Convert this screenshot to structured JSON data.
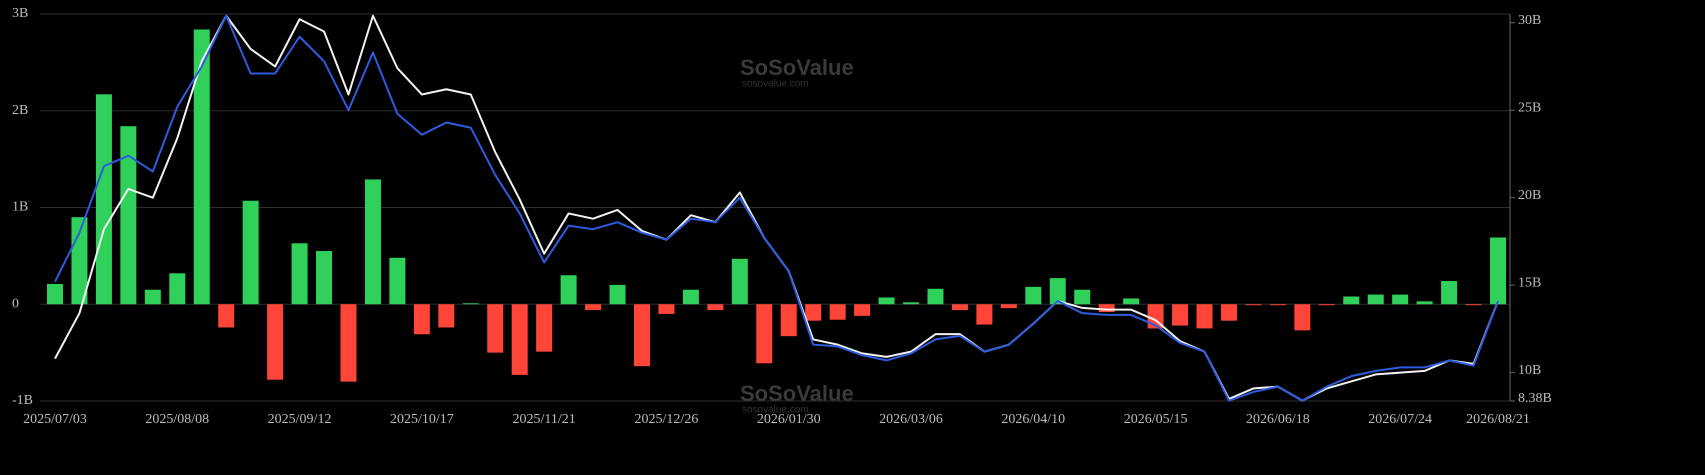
{
  "chart_data": {
    "type": "bar-line",
    "watermark": "SoSoValue",
    "watermark_url": "sosovalue.com",
    "categories": [
      "2025/07/03",
      null,
      null,
      null,
      null,
      "2025/08/08",
      null,
      null,
      null,
      null,
      "2025/09/12",
      null,
      null,
      null,
      null,
      "2025/10/17",
      null,
      null,
      null,
      null,
      "2025/11/21",
      null,
      null,
      null,
      null,
      "2025/12/26",
      null,
      null,
      null,
      null,
      "2026/01/30",
      null,
      null,
      null,
      null,
      "2026/03/06",
      null,
      null,
      null,
      null,
      "2026/04/10",
      null,
      null,
      null,
      null,
      "2026/05/15",
      null,
      null,
      null,
      null,
      "2026/06/18",
      null,
      null,
      null,
      null,
      "2026/07/24",
      null,
      null,
      null,
      "2026/08/21"
    ],
    "series": [
      {
        "type": "bar",
        "axis": "y",
        "positive_color": "#2fd15a",
        "negative_color": "#ff4538",
        "values": [
          0.21,
          0.9,
          2.17,
          1.84,
          0.15,
          0.32,
          2.84,
          -0.24,
          1.07,
          -0.78,
          0.63,
          0.55,
          -0.8,
          1.29,
          0.48,
          -0.31,
          -0.24,
          0.01,
          -0.5,
          -0.73,
          -0.49,
          0.3,
          -0.06,
          0.2,
          -0.64,
          -0.1,
          0.15,
          -0.06,
          0.47,
          -0.61,
          -0.33,
          -0.17,
          -0.16,
          -0.12,
          0.07,
          0.02,
          0.16,
          -0.06,
          -0.21,
          -0.04,
          0.18,
          0.27,
          0.15,
          -0.08,
          0.06,
          -0.25,
          -0.22,
          -0.25,
          -0.17,
          -0.01,
          -0.01,
          -0.27,
          -0.01,
          0.08,
          0.1,
          0.1,
          0.03,
          0.24,
          -0.01,
          0.69
        ]
      },
      {
        "type": "line",
        "axis": "y2",
        "color": "#f2f2f2",
        "values": [
          10.8,
          13.4,
          18.2,
          20.5,
          20.0,
          23.4,
          27.8,
          30.4,
          28.5,
          27.5,
          30.2,
          29.5,
          25.9,
          30.4,
          27.4,
          25.9,
          26.2,
          25.9,
          22.6,
          19.9,
          16.8,
          19.1,
          18.8,
          19.3,
          18.1,
          17.6,
          19.0,
          18.6,
          20.3,
          17.7,
          15.8,
          11.9,
          11.6,
          11.1,
          10.9,
          11.2,
          12.2,
          12.2,
          11.2,
          11.6,
          12.8,
          14.1,
          13.7,
          13.6,
          13.6,
          13.0,
          11.8,
          11.2,
          8.5,
          9.1,
          9.2,
          8.4,
          9.1,
          9.5,
          9.9,
          10.0,
          10.1,
          10.7,
          10.5,
          14.1
        ]
      },
      {
        "type": "line",
        "axis": "y2",
        "color": "#2f5be0",
        "values": [
          15.2,
          18.0,
          21.8,
          22.4,
          21.5,
          25.2,
          27.5,
          30.4,
          27.1,
          27.1,
          29.2,
          27.8,
          25.0,
          28.3,
          24.8,
          23.6,
          24.3,
          24.0,
          21.3,
          19.1,
          16.3,
          18.4,
          18.2,
          18.6,
          18.0,
          17.6,
          18.8,
          18.6,
          20.0,
          17.7,
          15.8,
          11.6,
          11.5,
          11.0,
          10.7,
          11.1,
          11.9,
          12.1,
          11.2,
          11.6,
          12.8,
          14.1,
          13.4,
          13.3,
          13.3,
          12.7,
          11.7,
          11.2,
          8.4,
          8.9,
          9.2,
          8.4,
          9.2,
          9.8,
          10.1,
          10.3,
          10.3,
          10.7,
          10.4,
          14.1
        ]
      }
    ],
    "ylim": [
      -1,
      3
    ],
    "yticks": [
      {
        "value": -1,
        "label": "-1B"
      },
      0,
      {
        "value": 1,
        "label": "1B"
      },
      {
        "value": 2,
        "label": "2B"
      },
      {
        "value": 3,
        "label": "3B"
      }
    ],
    "y2lim": [
      8.38,
      30.5
    ],
    "y2ticks": [
      {
        "value": 8.38,
        "label": "8.38B"
      },
      {
        "value": 10,
        "label": "10B"
      },
      {
        "value": 15,
        "label": "15B"
      },
      {
        "value": 20,
        "label": "20B"
      },
      {
        "value": 25,
        "label": "25B"
      },
      {
        "value": 30,
        "label": "30B"
      }
    ],
    "grid": true
  }
}
